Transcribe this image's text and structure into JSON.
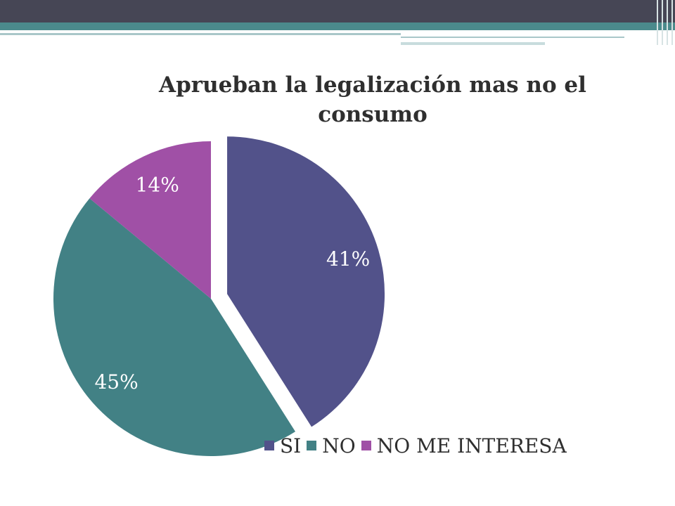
{
  "chart_data": {
    "type": "pie",
    "title": "Aprueban la legalización mas no el consumo",
    "categories": [
      "SI",
      "NO",
      "NO ME INTERESA"
    ],
    "values": [
      41,
      45,
      14
    ],
    "labels": [
      "41%",
      "45%",
      "14%"
    ],
    "colors": [
      "#52528a",
      "#428185",
      "#a050a6"
    ],
    "exploded": [
      "SI"
    ],
    "legend_position": "bottom"
  }
}
